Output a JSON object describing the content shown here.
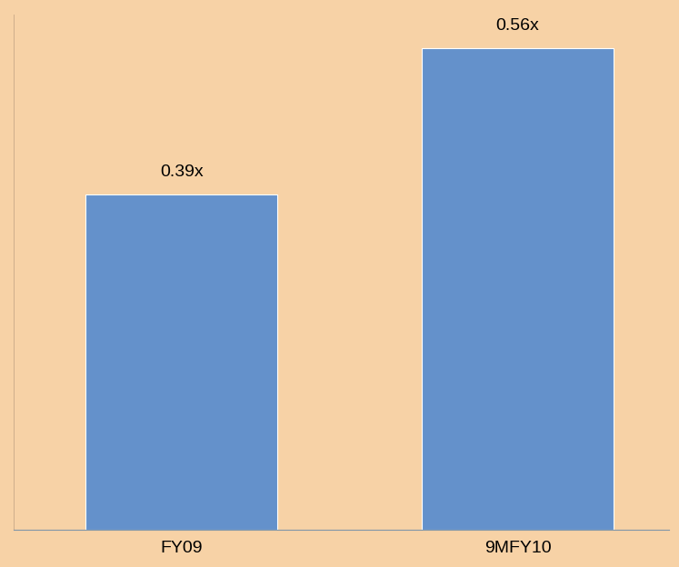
{
  "chart_data": {
    "type": "bar",
    "categories": [
      "FY09",
      "9MFY10"
    ],
    "values": [
      0.39,
      0.56
    ],
    "value_labels": [
      "0.39x",
      "0.56x"
    ],
    "color": "#6491cb",
    "ylim": [
      0,
      0.6
    ],
    "yticks": [],
    "data_labels": true,
    "tick_labels": "x",
    "grid": false
  }
}
